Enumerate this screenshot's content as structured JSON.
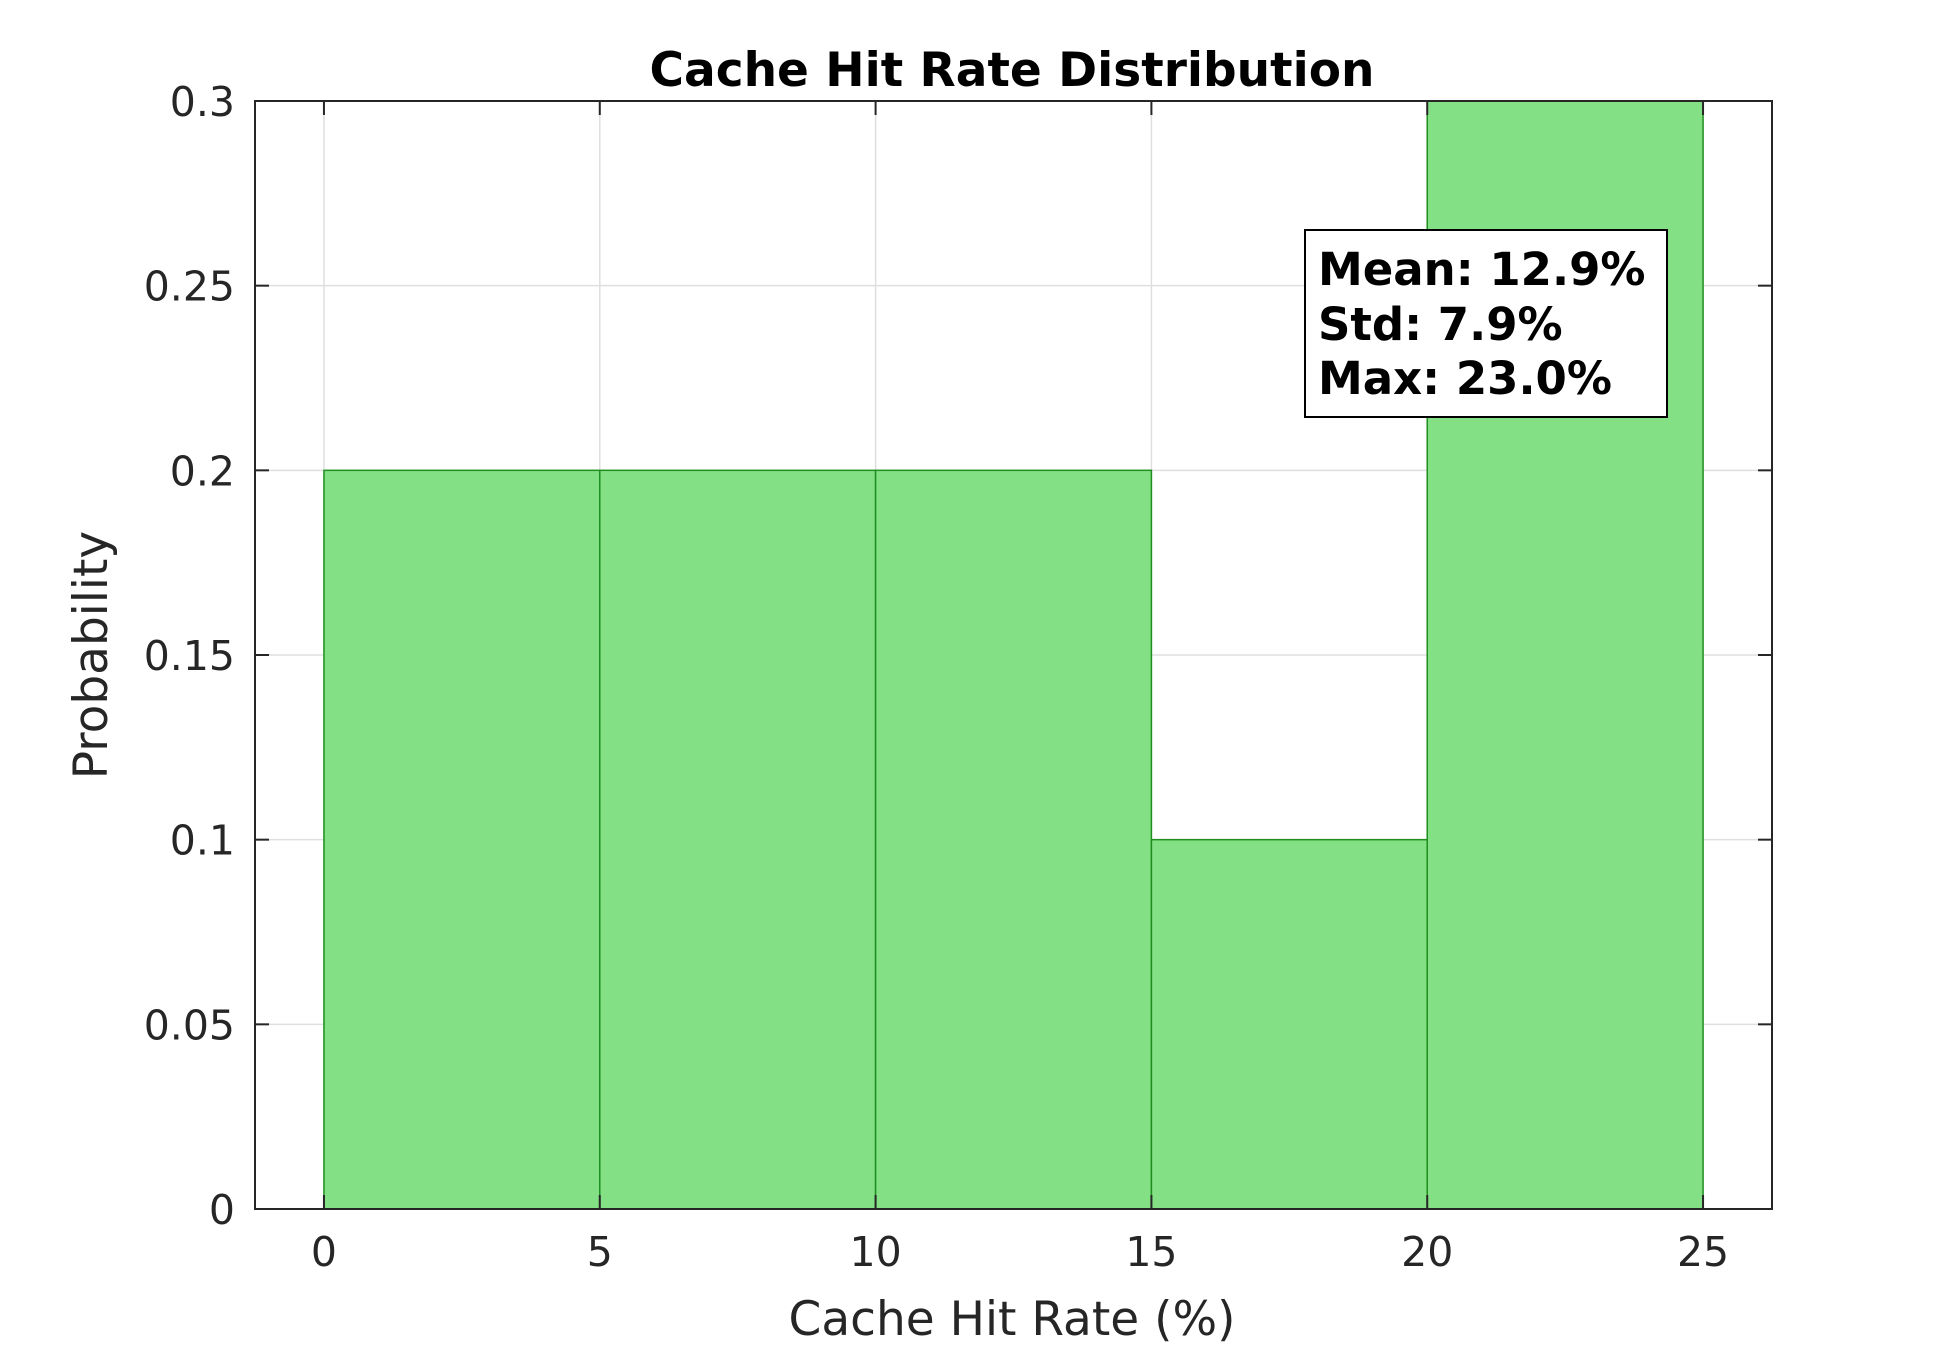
{
  "chart_data": {
    "type": "bar",
    "title": "Cache Hit Rate Distribution",
    "xlabel": "Cache Hit Rate (%)",
    "ylabel": "Probability",
    "bin_edges": [
      0,
      5,
      10,
      15,
      20,
      25
    ],
    "values": [
      0.2,
      0.2,
      0.2,
      0.1,
      0.3
    ],
    "xlim": [
      -1.25,
      26.25
    ],
    "ylim": [
      0,
      0.3
    ],
    "x_ticks": [
      0,
      5,
      10,
      15,
      20,
      25
    ],
    "x_tick_labels": [
      "0",
      "5",
      "10",
      "15",
      "20",
      "25"
    ],
    "y_ticks": [
      0,
      0.05,
      0.1,
      0.15,
      0.2,
      0.25,
      0.3
    ],
    "y_tick_labels": [
      "0",
      "0.05",
      "0.1",
      "0.15",
      "0.2",
      "0.25",
      "0.3"
    ],
    "grid": true,
    "bar_color": "#83e085",
    "bar_edge_color": "#1f8f1f",
    "annotation": {
      "lines": [
        "Mean: 12.9%",
        "Std: 7.9%",
        "Max: 23.0%"
      ],
      "placement": "top-right"
    }
  }
}
